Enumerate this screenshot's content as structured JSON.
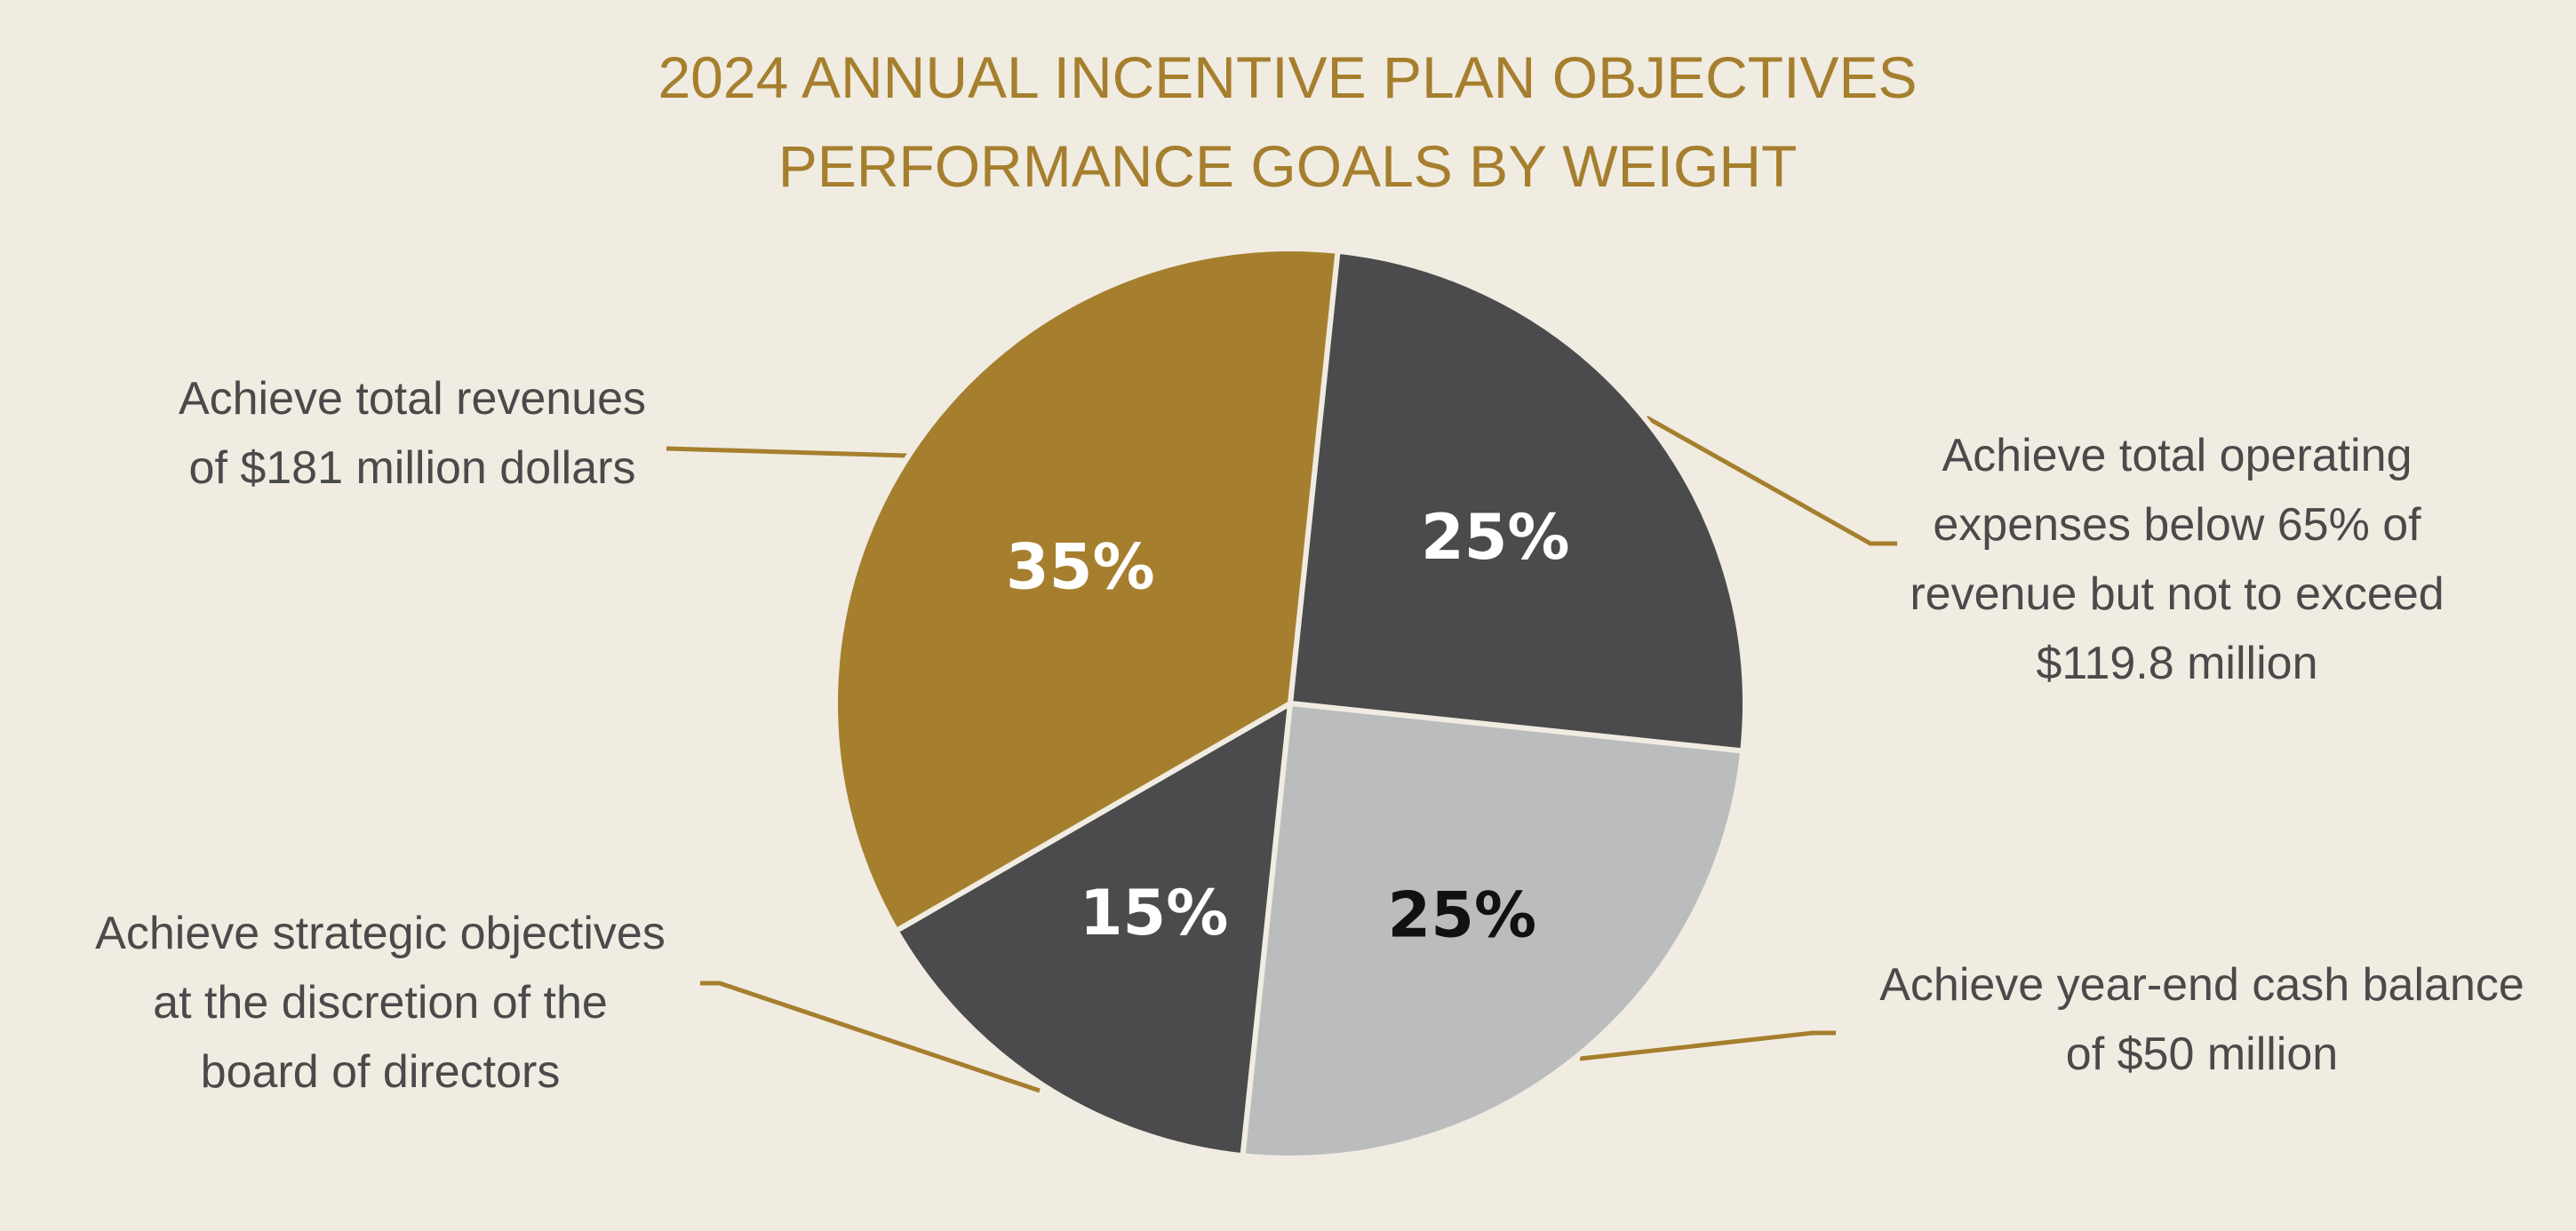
{
  "colors": {
    "background": "#f0ece2",
    "gold": "#a67f2e",
    "dark_gray": "#4b4b4d",
    "light_gray": "#bbbcbe",
    "text_gray": "#4a4a4a",
    "white": "#ffffff",
    "black": "#111111"
  },
  "chart_data": {
    "type": "pie",
    "title": [
      "2024 ANNUAL INCENTIVE PLAN OBJECTIVES",
      "PERFORMANCE GOALS BY WEIGHT"
    ],
    "slices": [
      {
        "label": "25%",
        "value": 25,
        "color": "#4b4b4d",
        "label_color": "#ffffff",
        "description": [
          "Achieve total operating",
          "expenses below 65% of",
          "revenue but not to exceed",
          "$119.8 million"
        ]
      },
      {
        "label": "25%",
        "value": 25,
        "color": "#bbbcbe",
        "label_color": "#111111",
        "description": [
          "Achieve year-end cash balance",
          "of $50 million"
        ]
      },
      {
        "label": "15%",
        "value": 15,
        "color": "#4b4b4d",
        "label_color": "#ffffff",
        "description": [
          "Achieve strategic objectives",
          "at the discretion of the",
          "board of directors"
        ]
      },
      {
        "label": "35%",
        "value": 35,
        "color": "#a67f2e",
        "label_color": "#ffffff",
        "description": [
          "Achieve total revenues",
          "of $181 million dollars"
        ]
      }
    ]
  }
}
